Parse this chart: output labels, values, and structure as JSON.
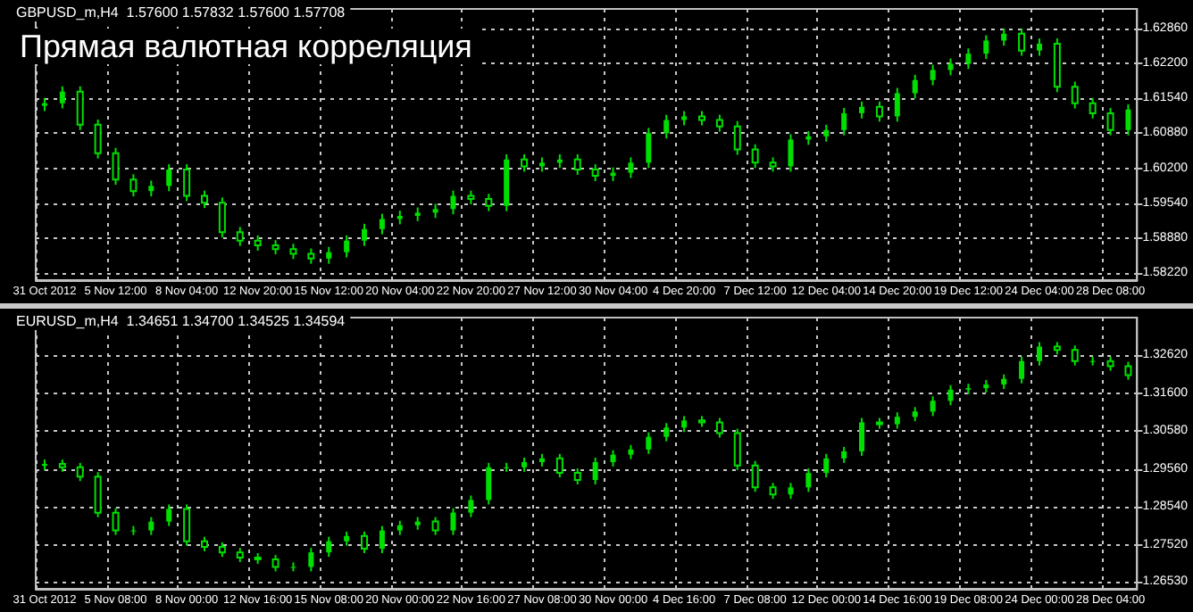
{
  "chart_data": [
    {
      "type": "candlestick",
      "title": "Прямая валютная корреляция",
      "subtitle": "GBPUSD_m,H4  1.57600 1.57832 1.57600 1.57708",
      "color": "#00e000",
      "grid": true,
      "categories": [
        "31 Oct 2012",
        null,
        null,
        null,
        "5 Nov 12:00",
        null,
        null,
        null,
        "8 Nov 04:00",
        null,
        null,
        null,
        "12 Nov 20:00",
        null,
        null,
        null,
        "15 Nov 12:00",
        null,
        null,
        null,
        "20 Nov 04:00",
        null,
        null,
        null,
        "22 Nov 20:00",
        null,
        null,
        null,
        "27 Nov 12:00",
        null,
        null,
        null,
        "30 Nov 04:00",
        null,
        null,
        null,
        "4 Dec 20:00",
        null,
        null,
        null,
        "7 Dec 12:00",
        null,
        null,
        null,
        "12 Dec 04:00",
        null,
        null,
        null,
        "14 Dec 20:00",
        null,
        null,
        null,
        "19 Dec 12:00",
        null,
        null,
        null,
        "24 Dec 04:00",
        null,
        null,
        null,
        "28 Dec 08:00",
        null
      ],
      "ylim": [
        1.5809,
        1.6324
      ],
      "yticks": [
        {
          "value": 1.5822,
          "label": "1.58220"
        },
        {
          "value": 1.5888,
          "label": "1.58880"
        },
        {
          "value": 1.5954,
          "label": "1.59540"
        },
        {
          "value": 1.602,
          "label": "1.60200"
        },
        {
          "value": 1.6088,
          "label": "1.60880"
        },
        {
          "value": 1.6154,
          "label": "1.61540"
        },
        {
          "value": 1.622,
          "label": "1.62200"
        },
        {
          "value": 1.6286,
          "label": "1.62860"
        }
      ],
      "ohlc": [
        [
          1.614,
          1.6155,
          1.613,
          1.6145
        ],
        [
          1.6145,
          1.6177,
          1.6135,
          1.6167
        ],
        [
          1.6167,
          1.6177,
          1.6094,
          1.6104
        ],
        [
          1.6104,
          1.6114,
          1.604,
          1.605
        ],
        [
          1.605,
          1.606,
          1.599,
          1.6
        ],
        [
          1.6,
          1.601,
          1.5968,
          1.5978
        ],
        [
          1.5978,
          1.5998,
          1.5968,
          1.5988
        ],
        [
          1.5988,
          1.6029,
          1.5978,
          1.6019
        ],
        [
          1.6019,
          1.6029,
          1.5959,
          1.5969
        ],
        [
          1.5969,
          1.5979,
          1.5946,
          1.5956
        ],
        [
          1.5956,
          1.5966,
          1.589,
          1.59
        ],
        [
          1.59,
          1.591,
          1.5874,
          1.5884
        ],
        [
          1.5884,
          1.5894,
          1.5865,
          1.5875
        ],
        [
          1.5875,
          1.5885,
          1.5858,
          1.5868
        ],
        [
          1.5868,
          1.5878,
          1.5849,
          1.5859
        ],
        [
          1.5859,
          1.5869,
          1.584,
          1.585
        ],
        [
          1.585,
          1.5872,
          1.584,
          1.5862
        ],
        [
          1.5862,
          1.5894,
          1.5852,
          1.5884
        ],
        [
          1.5884,
          1.5916,
          1.5874,
          1.5906
        ],
        [
          1.5906,
          1.5935,
          1.5896,
          1.5925
        ],
        [
          1.5925,
          1.5941,
          1.5915,
          1.5931
        ],
        [
          1.5931,
          1.5947,
          1.5921,
          1.5937
        ],
        [
          1.5937,
          1.5954,
          1.5927,
          1.5944
        ],
        [
          1.5944,
          1.5979,
          1.5934,
          1.5969
        ],
        [
          1.5969,
          1.5979,
          1.5953,
          1.5963
        ],
        [
          1.5963,
          1.5973,
          1.594,
          1.595
        ],
        [
          1.595,
          1.6048,
          1.594,
          1.6038
        ],
        [
          1.6038,
          1.6048,
          1.6015,
          1.6025
        ],
        [
          1.6025,
          1.6042,
          1.6015,
          1.6032
        ],
        [
          1.6032,
          1.6048,
          1.6022,
          1.6038
        ],
        [
          1.6038,
          1.6048,
          1.6009,
          1.6019
        ],
        [
          1.6019,
          1.6029,
          1.5997,
          1.6007
        ],
        [
          1.6007,
          1.6023,
          1.5997,
          1.6013
        ],
        [
          1.6013,
          1.6042,
          1.6003,
          1.6032
        ],
        [
          1.6032,
          1.6098,
          1.6022,
          1.6088
        ],
        [
          1.6088,
          1.6123,
          1.6078,
          1.6113
        ],
        [
          1.6113,
          1.613,
          1.6103,
          1.612
        ],
        [
          1.612,
          1.613,
          1.6103,
          1.6113
        ],
        [
          1.6113,
          1.6123,
          1.6091,
          1.6101
        ],
        [
          1.6101,
          1.6111,
          1.6047,
          1.6057
        ],
        [
          1.6057,
          1.6067,
          1.6022,
          1.6032
        ],
        [
          1.6032,
          1.6042,
          1.6015,
          1.6025
        ],
        [
          1.6025,
          1.6086,
          1.6015,
          1.6076
        ],
        [
          1.6076,
          1.6092,
          1.6066,
          1.6082
        ],
        [
          1.6082,
          1.6104,
          1.6072,
          1.6094
        ],
        [
          1.6094,
          1.6136,
          1.6084,
          1.6126
        ],
        [
          1.6126,
          1.6148,
          1.6116,
          1.6138
        ],
        [
          1.6138,
          1.6148,
          1.611,
          1.612
        ],
        [
          1.612,
          1.6174,
          1.611,
          1.6164
        ],
        [
          1.6164,
          1.6199,
          1.6154,
          1.6189
        ],
        [
          1.6189,
          1.6218,
          1.6179,
          1.6208
        ],
        [
          1.6208,
          1.623,
          1.6198,
          1.622
        ],
        [
          1.622,
          1.6249,
          1.621,
          1.6239
        ],
        [
          1.6239,
          1.6274,
          1.6229,
          1.6264
        ],
        [
          1.6264,
          1.6287,
          1.6254,
          1.6277
        ],
        [
          1.6277,
          1.6287,
          1.6235,
          1.6245
        ],
        [
          1.6245,
          1.6268,
          1.6235,
          1.6258
        ],
        [
          1.6258,
          1.6268,
          1.6166,
          1.6176
        ],
        [
          1.6176,
          1.6186,
          1.6135,
          1.6145
        ],
        [
          1.6145,
          1.6155,
          1.6116,
          1.6126
        ],
        [
          1.6126,
          1.6136,
          1.6084,
          1.6094
        ],
        [
          1.6094,
          1.6143,
          1.6084,
          1.6133
        ]
      ]
    },
    {
      "type": "candlestick",
      "subtitle": "EURUSD_m,H4  1.34651 1.34700 1.34525 1.34594",
      "color": "#00e000",
      "grid": true,
      "categories": [
        "31 Oct 2012",
        null,
        null,
        null,
        "5 Nov 08:00",
        null,
        null,
        null,
        "8 Nov 00:00",
        null,
        null,
        null,
        "12 Nov 16:00",
        null,
        null,
        null,
        "15 Nov 08:00",
        null,
        null,
        null,
        "20 Nov 00:00",
        null,
        null,
        null,
        "22 Nov 16:00",
        null,
        null,
        null,
        "27 Nov 08:00",
        null,
        null,
        null,
        "30 Nov 00:00",
        null,
        null,
        null,
        "4 Dec 16:00",
        null,
        null,
        null,
        "7 Dec 08:00",
        null,
        null,
        null,
        "12 Dec 00:00",
        null,
        null,
        null,
        "14 Dec 16:00",
        null,
        null,
        null,
        "19 Dec 08:00",
        null,
        null,
        null,
        "24 Dec 00:00",
        null,
        null,
        null,
        "28 Dec 04:00",
        null
      ],
      "ylim": [
        1.2634,
        1.3364
      ],
      "yticks": [
        {
          "value": 1.2653,
          "label": "1.26530"
        },
        {
          "value": 1.2752,
          "label": "1.27520"
        },
        {
          "value": 1.2854,
          "label": "1.28540"
        },
        {
          "value": 1.2956,
          "label": "1.29560"
        },
        {
          "value": 1.3058,
          "label": "1.30580"
        },
        {
          "value": 1.316,
          "label": "1.31600"
        },
        {
          "value": 1.3262,
          "label": "1.32620"
        }
      ],
      "ohlc": [
        [
          1.2965,
          1.2982,
          1.2953,
          1.297
        ],
        [
          1.297,
          1.2982,
          1.2949,
          1.2961
        ],
        [
          1.2961,
          1.2973,
          1.2924,
          1.2936
        ],
        [
          1.2936,
          1.2948,
          1.2827,
          1.2839
        ],
        [
          1.2839,
          1.2851,
          1.2779,
          1.2791
        ],
        [
          1.2791,
          1.2803,
          1.2779,
          1.2791
        ],
        [
          1.2791,
          1.2827,
          1.2779,
          1.2815
        ],
        [
          1.2815,
          1.2861,
          1.2803,
          1.2849
        ],
        [
          1.2849,
          1.2861,
          1.275,
          1.2762
        ],
        [
          1.2762,
          1.2774,
          1.2735,
          1.2747
        ],
        [
          1.2747,
          1.2759,
          1.272,
          1.2732
        ],
        [
          1.2732,
          1.2744,
          1.2706,
          1.2718
        ],
        [
          1.2718,
          1.273,
          1.2701,
          1.2713
        ],
        [
          1.2713,
          1.2725,
          1.2681,
          1.2693
        ],
        [
          1.2693,
          1.2705,
          1.2681,
          1.2693
        ],
        [
          1.2693,
          1.2744,
          1.2681,
          1.2732
        ],
        [
          1.2732,
          1.2774,
          1.272,
          1.2762
        ],
        [
          1.2762,
          1.2788,
          1.275,
          1.2776
        ],
        [
          1.2776,
          1.2788,
          1.273,
          1.2742
        ],
        [
          1.2742,
          1.2803,
          1.273,
          1.2791
        ],
        [
          1.2791,
          1.2817,
          1.2779,
          1.2805
        ],
        [
          1.2805,
          1.2827,
          1.2793,
          1.2815
        ],
        [
          1.2815,
          1.2827,
          1.2779,
          1.2791
        ],
        [
          1.2791,
          1.2851,
          1.2779,
          1.2839
        ],
        [
          1.2839,
          1.2885,
          1.2827,
          1.2873
        ],
        [
          1.2873,
          1.2973,
          1.2861,
          1.2961
        ],
        [
          1.2961,
          1.2973,
          1.2949,
          1.2961
        ],
        [
          1.2961,
          1.2987,
          1.2949,
          1.2975
        ],
        [
          1.2975,
          1.2997,
          1.2963,
          1.2985
        ],
        [
          1.2985,
          1.2997,
          1.2934,
          1.2946
        ],
        [
          1.2946,
          1.2958,
          1.2915,
          1.2927
        ],
        [
          1.2927,
          1.2987,
          1.2915,
          1.2975
        ],
        [
          1.2975,
          1.3007,
          1.2963,
          1.2995
        ],
        [
          1.2995,
          1.3021,
          1.2983,
          1.3009
        ],
        [
          1.3009,
          1.3055,
          1.2997,
          1.3043
        ],
        [
          1.3043,
          1.308,
          1.3031,
          1.3068
        ],
        [
          1.3068,
          1.3099,
          1.3056,
          1.3087
        ],
        [
          1.3087,
          1.3099,
          1.307,
          1.3082
        ],
        [
          1.3082,
          1.3094,
          1.3041,
          1.3053
        ],
        [
          1.3053,
          1.3065,
          1.2954,
          1.2966
        ],
        [
          1.2966,
          1.2978,
          1.2895,
          1.2907
        ],
        [
          1.2907,
          1.2919,
          1.2876,
          1.2888
        ],
        [
          1.2888,
          1.2919,
          1.2876,
          1.2907
        ],
        [
          1.2907,
          1.2958,
          1.2895,
          1.2946
        ],
        [
          1.2946,
          1.2997,
          1.2934,
          1.2985
        ],
        [
          1.2985,
          1.3016,
          1.2973,
          1.3004
        ],
        [
          1.3004,
          1.3094,
          1.2992,
          1.3082
        ],
        [
          1.3082,
          1.3094,
          1.3065,
          1.3077
        ],
        [
          1.3077,
          1.3109,
          1.3065,
          1.3097
        ],
        [
          1.3097,
          1.3123,
          1.3085,
          1.3111
        ],
        [
          1.3111,
          1.3152,
          1.3099,
          1.314
        ],
        [
          1.314,
          1.3182,
          1.3128,
          1.317
        ],
        [
          1.317,
          1.3186,
          1.3158,
          1.3174
        ],
        [
          1.3174,
          1.3196,
          1.3162,
          1.3184
        ],
        [
          1.3184,
          1.3211,
          1.3172,
          1.3199
        ],
        [
          1.3199,
          1.3259,
          1.3187,
          1.3247
        ],
        [
          1.3247,
          1.3298,
          1.3235,
          1.3286
        ],
        [
          1.3286,
          1.3298,
          1.3265,
          1.3277
        ],
        [
          1.3277,
          1.3289,
          1.3235,
          1.3247
        ],
        [
          1.3247,
          1.3259,
          1.3235,
          1.3247
        ],
        [
          1.3247,
          1.3259,
          1.3221,
          1.3233
        ],
        [
          1.3233,
          1.3245,
          1.3197,
          1.3209
        ]
      ]
    }
  ]
}
